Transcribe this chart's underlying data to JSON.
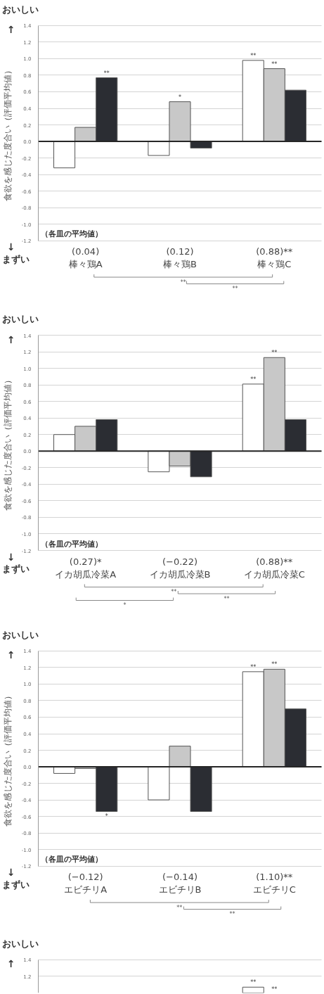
{
  "chart_data": [
    {
      "type": "bar",
      "ylabel": "食欲を感じた度合い（評価平均値）",
      "categories": [
        "(0.04)\n棒々鶏A",
        "(0.12)\n棒々鶏B",
        "(0.88)**\n棒々鶏C"
      ],
      "series": [
        {
          "color": "#ffffff",
          "values": [
            -0.32,
            -0.17,
            0.98
          ],
          "value_labels": [
            null,
            null,
            "**"
          ]
        },
        {
          "color": "#c8c8c8",
          "values": [
            0.17,
            0.48,
            0.88
          ],
          "value_labels": [
            null,
            "*",
            "**"
          ]
        },
        {
          "color": "#2b2d33",
          "values": [
            0.77,
            -0.08,
            0.62
          ],
          "value_labels": [
            "**",
            null,
            null
          ]
        }
      ],
      "ylim": [
        -1.2,
        1.4
      ],
      "yticks": [
        1.4,
        1.2,
        {
          "value": 1,
          "label": "1.0"
        },
        0.8,
        0.6,
        0.4,
        0.2,
        {
          "value": 0,
          "label": "0.0"
        },
        -0.2,
        -0.4,
        -0.6,
        -0.8,
        {
          "value": -1,
          "label": "-1.0"
        },
        -1.2
      ],
      "grid": "y",
      "ref_lines": [
        {
          "axis": "y",
          "value": 0,
          "color": "#262626"
        }
      ],
      "annotations": [
        "おいしい",
        "↑",
        "↓",
        "まずい",
        "（各皿の平均値）",
        "**",
        "**"
      ]
    },
    {
      "type": "bar",
      "ylabel": "食欲を感じた度合い（評価平均値）",
      "categories": [
        "(0.27)*\nイカ胡瓜冷菜A",
        "(−0.22)\nイカ胡瓜冷菜B",
        "(0.88)**\nイカ胡瓜冷菜C"
      ],
      "series": [
        {
          "color": "#ffffff",
          "values": [
            0.2,
            -0.25,
            0.81
          ],
          "value_labels": [
            null,
            null,
            "**"
          ]
        },
        {
          "color": "#c8c8c8",
          "values": [
            0.3,
            -0.18,
            1.13
          ],
          "value_labels": [
            null,
            null,
            "**"
          ]
        },
        {
          "color": "#2b2d33",
          "values": [
            0.38,
            -0.31,
            0.38
          ]
        }
      ],
      "ylim": [
        -1.2,
        1.4
      ],
      "yticks": [
        1.4,
        1.2,
        {
          "value": 1,
          "label": "1.0"
        },
        0.8,
        0.6,
        0.4,
        0.2,
        {
          "value": 0,
          "label": "0.0"
        },
        -0.2,
        -0.4,
        -0.6,
        -0.8,
        {
          "value": -1,
          "label": "-1.0"
        },
        -1.2
      ],
      "grid": "y",
      "ref_lines": [
        {
          "axis": "y",
          "value": 0,
          "color": "#262626"
        }
      ],
      "annotations": [
        "おいしい",
        "↑",
        "↓",
        "まずい",
        "（各皿の平均値）",
        "**",
        "**",
        "*"
      ]
    },
    {
      "type": "bar",
      "ylabel": "食欲を感じた度合い（評価平均値）",
      "categories": [
        "(−0.12)\nエビチリA",
        "(−0.14)\nエビチリB",
        "(1.10)**\nエビチリC"
      ],
      "series": [
        {
          "color": "#ffffff",
          "values": [
            -0.08,
            -0.4,
            1.15
          ],
          "value_labels": [
            null,
            null,
            "**"
          ]
        },
        {
          "color": "#c8c8c8",
          "values": [
            -0.02,
            0.25,
            1.18
          ],
          "value_labels": [
            null,
            null,
            "**"
          ]
        },
        {
          "color": "#2b2d33",
          "values": [
            -0.54,
            -0.54,
            0.7
          ],
          "value_labels": [
            "*",
            null,
            null
          ]
        }
      ],
      "ylim": [
        -1.2,
        1.4
      ],
      "yticks": [
        1.4,
        1.2,
        {
          "value": 1,
          "label": "1.0"
        },
        0.8,
        0.6,
        0.4,
        0.2,
        {
          "value": 0,
          "label": "0.0"
        },
        -0.2,
        -0.4,
        -0.6,
        -0.8,
        {
          "value": -1,
          "label": "-1.0"
        },
        -1.2
      ],
      "grid": "y",
      "ref_lines": [
        {
          "axis": "y",
          "value": 0,
          "color": "#262626"
        }
      ],
      "annotations": [
        "おいしい",
        "↑",
        "↓",
        "まずい",
        "（各皿の平均値）",
        "**",
        "**"
      ]
    },
    {
      "type": "bar",
      "categories": [
        null,
        null,
        null
      ],
      "series": [
        {
          "color": "#ffffff",
          "values": [
            null,
            null,
            1.07
          ],
          "value_labels": [
            null,
            null,
            "**"
          ]
        },
        {
          "values": [
            null,
            null,
            null
          ],
          "value_labels": [
            null,
            null,
            "**"
          ]
        },
        {
          "values": [
            null,
            null,
            null
          ]
        }
      ],
      "ylim": [
        1.0,
        1.4
      ],
      "yticks": [
        1.4,
        1.2
      ],
      "grid": "y",
      "tick_labels": "y",
      "annotations": [
        "おいしい",
        "↑"
      ]
    }
  ]
}
